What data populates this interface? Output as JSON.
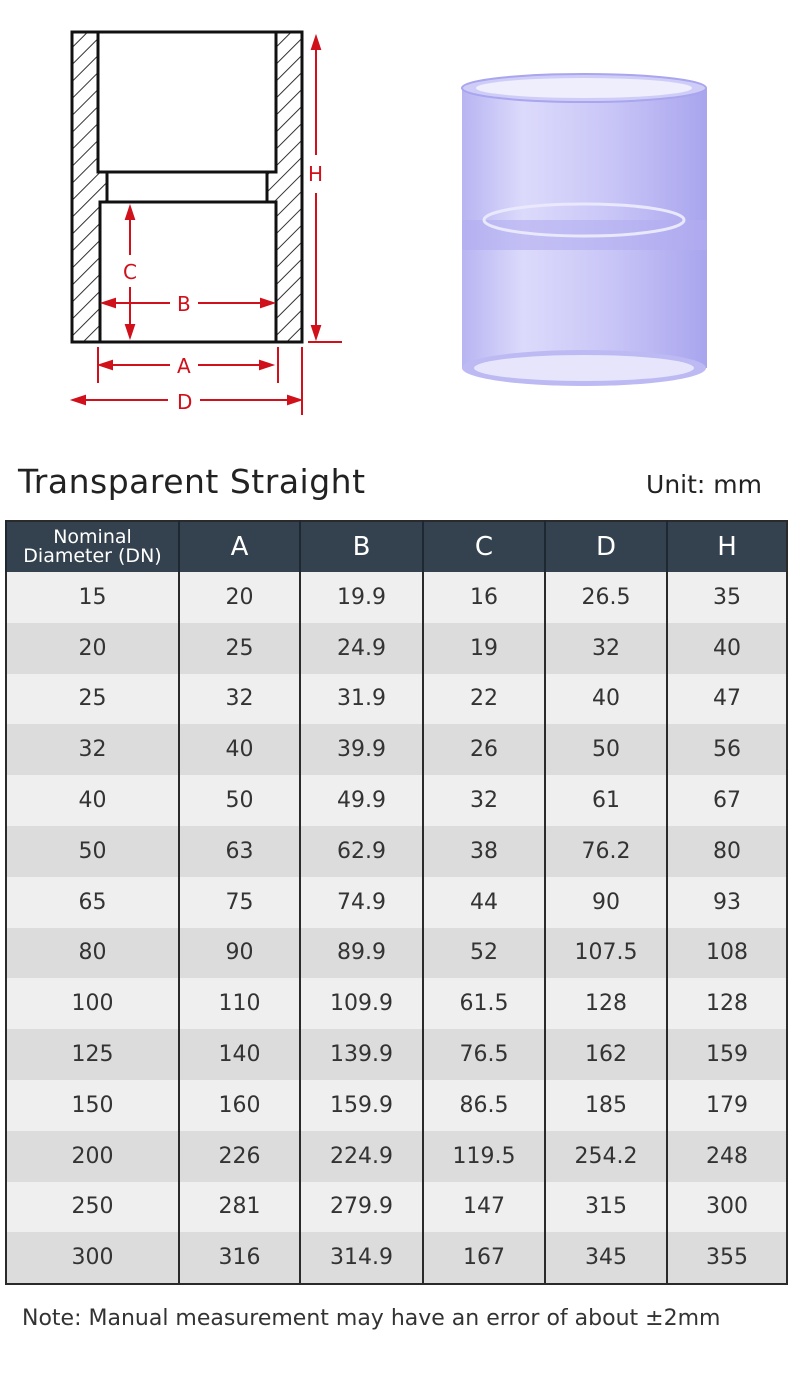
{
  "diagram": {
    "labels": {
      "A": "A",
      "B": "B",
      "C": "C",
      "D": "D",
      "H": "H"
    },
    "accent_color": "#d0101a"
  },
  "title": "Transparent Straight",
  "unit": "Unit: mm",
  "table": {
    "headers": [
      "Nominal Diameter (DN)",
      "A",
      "B",
      "C",
      "D",
      "H"
    ],
    "rows": [
      [
        "15",
        "20",
        "19.9",
        "16",
        "26.5",
        "35"
      ],
      [
        "20",
        "25",
        "24.9",
        "19",
        "32",
        "40"
      ],
      [
        "25",
        "32",
        "31.9",
        "22",
        "40",
        "47"
      ],
      [
        "32",
        "40",
        "39.9",
        "26",
        "50",
        "56"
      ],
      [
        "40",
        "50",
        "49.9",
        "32",
        "61",
        "67"
      ],
      [
        "50",
        "63",
        "62.9",
        "38",
        "76.2",
        "80"
      ],
      [
        "65",
        "75",
        "74.9",
        "44",
        "90",
        "93"
      ],
      [
        "80",
        "90",
        "89.9",
        "52",
        "107.5",
        "108"
      ],
      [
        "100",
        "110",
        "109.9",
        "61.5",
        "128",
        "128"
      ],
      [
        "125",
        "140",
        "139.9",
        "76.5",
        "162",
        "159"
      ],
      [
        "150",
        "160",
        "159.9",
        "86.5",
        "185",
        "179"
      ],
      [
        "200",
        "226",
        "224.9",
        "119.5",
        "254.2",
        "248"
      ],
      [
        "250",
        "281",
        "279.9",
        "147",
        "315",
        "300"
      ],
      [
        "300",
        "316",
        "314.9",
        "167",
        "345",
        "355"
      ]
    ],
    "header_color": "#34424f"
  },
  "note": "Note: Manual measurement may have an error of about ±2mm"
}
